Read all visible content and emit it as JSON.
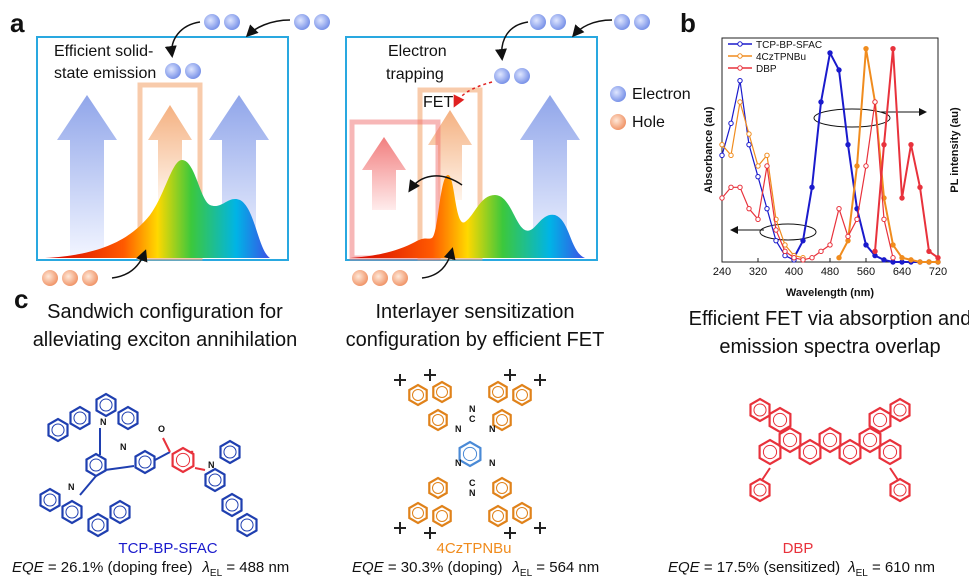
{
  "panel_a": {
    "label": "a",
    "left": {
      "annotation": [
        "Efficient solid-",
        "state emission"
      ],
      "caption": [
        "Sandwich configuration for",
        "alleviating exciton annihilation"
      ]
    },
    "right": {
      "annotation": [
        "Electron",
        "trapping"
      ],
      "fet": "FET",
      "caption": [
        "Interlayer sensitization",
        "configuration by efficient FET"
      ]
    },
    "legend": [
      "Electron",
      "Hole"
    ]
  },
  "panel_b": {
    "label": "b",
    "caption": [
      "Efficient FET via absorption and",
      "emission spectra overlap"
    ]
  },
  "chart_data": {
    "type": "line",
    "x_label": "Wavelength (nm)",
    "y_label": "Absorbance (au)",
    "y2_label": "PL intensity (au)",
    "xlim": [
      240,
      720
    ],
    "xticks": [
      240,
      320,
      400,
      480,
      560,
      640,
      720
    ],
    "ylim": [
      0,
      1.05
    ],
    "y2lim": [
      0,
      1.05
    ],
    "x": [
      240,
      260,
      280,
      300,
      320,
      340,
      360,
      380,
      400,
      420,
      440,
      460,
      480,
      500,
      520,
      540,
      560,
      580,
      600,
      620,
      640,
      660,
      680,
      700,
      720
    ],
    "series": [
      {
        "name": "TCP-BP-SFAC",
        "color": "#1a1acc",
        "absorbance": [
          0.5,
          0.65,
          0.85,
          0.55,
          0.4,
          0.25,
          0.1,
          0.03,
          0.01,
          null,
          null,
          null,
          null,
          null,
          null,
          null,
          null,
          null,
          null,
          null,
          null,
          null,
          null,
          null,
          null
        ],
        "pl": [
          null,
          null,
          null,
          null,
          null,
          null,
          null,
          null,
          0.02,
          0.1,
          0.35,
          0.75,
          0.98,
          0.9,
          0.55,
          0.25,
          0.08,
          0.03,
          0.01,
          0,
          0,
          0,
          0,
          0,
          0
        ]
      },
      {
        "name": "4CzTPNBu",
        "color": "#f08c1e",
        "absorbance": [
          0.55,
          0.5,
          0.75,
          0.6,
          0.45,
          0.5,
          0.2,
          0.08,
          0.03,
          0.02,
          null,
          null,
          null,
          null,
          null,
          null,
          null,
          null,
          null,
          null,
          null,
          null,
          null,
          null,
          null
        ],
        "pl": [
          null,
          null,
          null,
          null,
          null,
          null,
          null,
          null,
          null,
          null,
          null,
          null,
          null,
          0.02,
          0.1,
          0.45,
          1.0,
          0.75,
          0.3,
          0.08,
          0.02,
          0.01,
          0,
          0,
          0
        ]
      },
      {
        "name": "DBP",
        "color": "#e8323c",
        "absorbance": [
          0.3,
          0.35,
          0.35,
          0.25,
          0.2,
          0.45,
          0.15,
          0.05,
          0.02,
          0.01,
          0.02,
          0.05,
          0.08,
          0.25,
          0.12,
          0.2,
          0.45,
          0.75,
          0.2,
          0.02,
          null,
          null,
          null,
          null,
          null
        ],
        "pl": [
          null,
          null,
          null,
          null,
          null,
          null,
          null,
          null,
          null,
          null,
          null,
          null,
          null,
          null,
          null,
          null,
          null,
          0.05,
          0.55,
          1.0,
          0.3,
          0.55,
          0.35,
          0.05,
          0.02
        ]
      }
    ]
  },
  "panel_c": {
    "label": "c",
    "molecules": [
      {
        "name": "TCP-BP-SFAC",
        "eqe": "EQE",
        "eqe_text": " = 26.1% (doping free)",
        "lambda": "λ",
        "lambda_sub": "EL",
        "lambda_text": " = 488 nm",
        "atoms": [
          "N",
          "N",
          "N",
          "N",
          "O"
        ]
      },
      {
        "name": "4CzTPNBu",
        "eqe": "EQE",
        "eqe_text": " = 30.3% (doping)",
        "lambda": "λ",
        "lambda_sub": "EL",
        "lambda_text": " = 564 nm",
        "atoms": [
          "N",
          "N",
          "N",
          "N",
          "N",
          "N",
          "C",
          "C"
        ]
      },
      {
        "name": "DBP",
        "eqe": "EQE",
        "eqe_text": " = 17.5% (sensitized)",
        "lambda": "λ",
        "lambda_sub": "EL",
        "lambda_text": " = 610 nm"
      }
    ]
  }
}
